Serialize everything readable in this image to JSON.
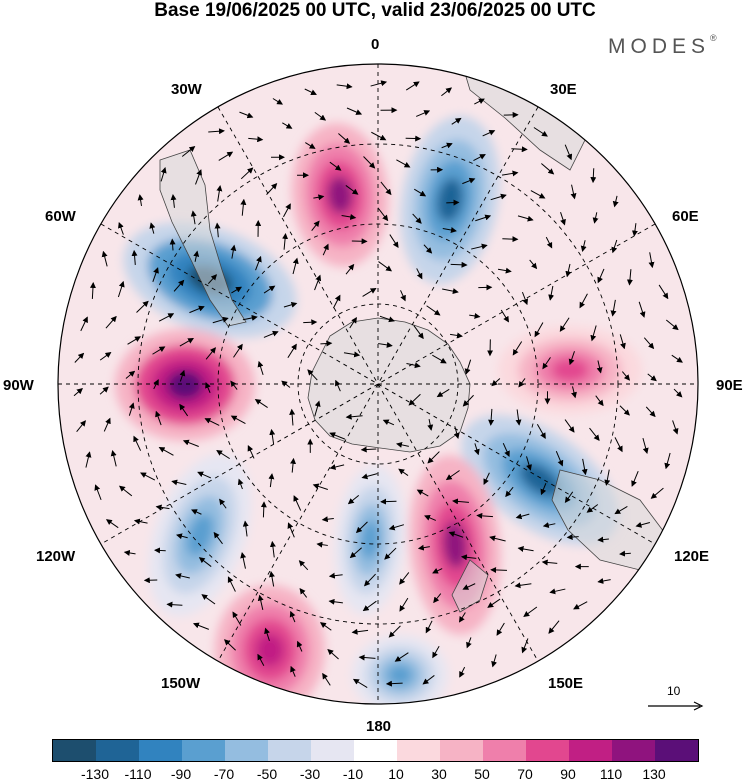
{
  "title": "Base 19/06/2025 00 UTC, valid 23/06/2025 00 UTC",
  "brand": {
    "name": "MODES",
    "mark": "®"
  },
  "lon_labels": {
    "top": "0",
    "bottom": "180",
    "left": "90W",
    "right": "90E",
    "upper_left_1": "30W",
    "upper_left_2": "60W",
    "upper_right_1": "30E",
    "upper_right_2": "60E",
    "lower_left_1": "120W",
    "lower_left_2": "150W",
    "lower_right_1": "120E",
    "lower_right_2": "150E"
  },
  "reference_vector": {
    "label": "10"
  },
  "colorbar": {
    "colors": [
      "#1d4e6e",
      "#1f6496",
      "#3183bf",
      "#5a9fd0",
      "#94bde0",
      "#c6d5ea",
      "#e6e6f2",
      "#ffffff",
      "#fbd9de",
      "#f6b3c5",
      "#ef7fab",
      "#e2478f",
      "#c11f84",
      "#8f137e",
      "#5b0f78"
    ],
    "tick_labels": [
      "-130",
      "-110",
      "-90",
      "-70",
      "-50",
      "-30",
      "-10",
      "10",
      "30",
      "50",
      "70",
      "90",
      "110",
      "130"
    ]
  },
  "map_data": {
    "projection": "south polar stereographic",
    "anomaly_centers": [
      {
        "sign": "positive",
        "sector": "near 15W",
        "level": 110
      },
      {
        "sign": "negative",
        "sector": "near 20E",
        "level": -110
      },
      {
        "sign": "negative",
        "sector": "near 50W",
        "level": -130
      },
      {
        "sign": "positive",
        "sector": "near 95W",
        "level": 130
      },
      {
        "sign": "positive",
        "sector": "near 90E",
        "level": 70
      },
      {
        "sign": "negative",
        "sector": "near 120E",
        "level": -110
      },
      {
        "sign": "positive",
        "sector": "near 160E",
        "level": 110
      },
      {
        "sign": "negative",
        "sector": "near 170W",
        "level": -70
      },
      {
        "sign": "negative",
        "sector": "near 130W",
        "level": -70
      },
      {
        "sign": "positive",
        "sector": "near 150W",
        "level": 90
      },
      {
        "sign": "negative",
        "sector": "near 170E",
        "level": -70
      }
    ]
  }
}
